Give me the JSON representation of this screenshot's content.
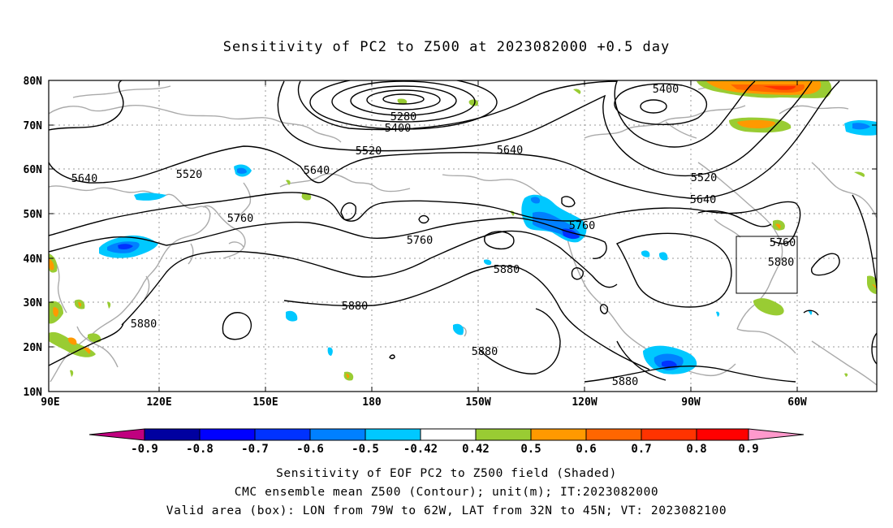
{
  "title": "Sensitivity of PC2 to Z500 at 2023082000 +0.5 day",
  "map": {
    "lat_labels": [
      "80N",
      "70N",
      "60N",
      "50N",
      "40N",
      "30N",
      "20N",
      "10N"
    ],
    "lon_labels": [
      "90E",
      "120E",
      "150E",
      "180",
      "150W",
      "120W",
      "90W",
      "60W"
    ],
    "contour_labels": {
      "c5280": "5280",
      "c5400a": "5400",
      "c5400b": "5400",
      "c5520a": "5520",
      "c5520b": "5520",
      "c5520c": "5520",
      "c5640a": "5640",
      "c5640b": "5640",
      "c5640c": "5640",
      "c5640d": "5640",
      "c5760a": "5760",
      "c5760b": "5760",
      "c5760c": "5760",
      "c5760d": "5760",
      "c5880a": "5880",
      "c5880b": "5880",
      "c5880c": "5880",
      "c5880d": "5880",
      "c5880e": "5880",
      "c5880f": "5880"
    },
    "valid_box": {
      "lon_from": "79W",
      "lon_to": "62W",
      "lat_from": "32N",
      "lat_to": "45N"
    }
  },
  "colorbar": {
    "labels": [
      "-0.9",
      "-0.8",
      "-0.7",
      "-0.6",
      "-0.5",
      "-0.42",
      "0.42",
      "0.5",
      "0.6",
      "0.7",
      "0.8",
      "0.9"
    ],
    "colors": [
      "#c0007f",
      "#0000a0",
      "#0000ff",
      "#0032ff",
      "#0080ff",
      "#00c8ff",
      "#ffffff",
      "#99cc33",
      "#ff9900",
      "#ff6600",
      "#ff3300",
      "#ff0000",
      "#ff99cc"
    ]
  },
  "footer": {
    "line1": "Sensitivity of EOF PC2 to Z500 field (Shaded)",
    "line2": "CMC ensemble mean Z500 (Contour); unit(m); IT:2023082000",
    "line3": "Valid area (box): LON from 79W to 62W, LAT from 32N to 45N; VT: 2023082100"
  }
}
